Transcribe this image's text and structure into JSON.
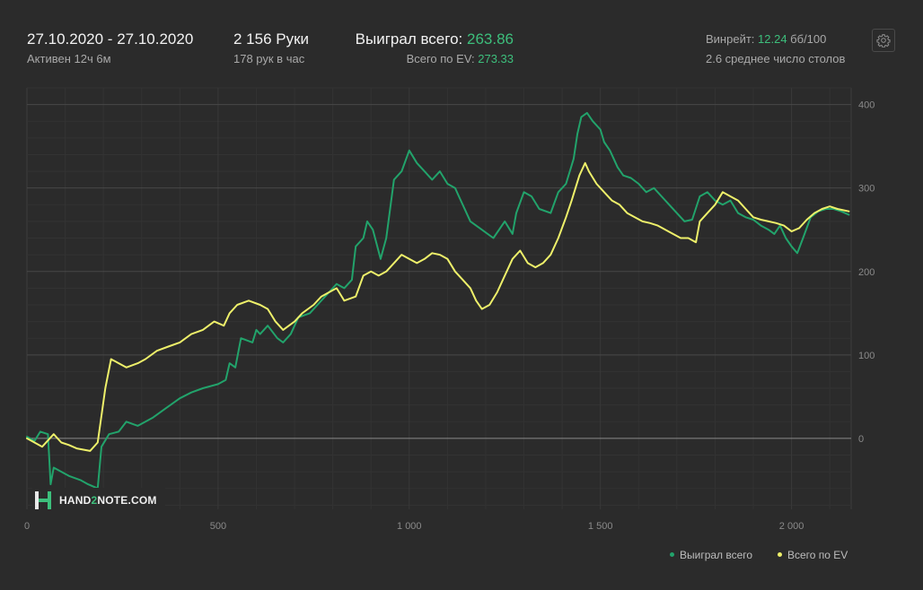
{
  "header": {
    "date_range": "27.10.2020 - 27.10.2020",
    "active": "Активен 12ч 6м",
    "hands": "2 156 Руки",
    "hands_per_hour": "178 рук в час",
    "won_label": "Выиграл всего: ",
    "won_value": "263.86",
    "ev_label": "Всего по EV: ",
    "ev_value": "273.33",
    "winrate_label": "Винрейт: ",
    "winrate_value": "12.24",
    "winrate_unit": " бб/100",
    "tables": "2.6 среднее число столов"
  },
  "logo": {
    "part1": "HAND",
    "part2": "2",
    "part3": "NOTE.COM"
  },
  "icons": {
    "settings": "gear-icon",
    "logo": "hand2note-logo-icon"
  },
  "colors": {
    "won": "#22a36b",
    "ev": "#eef06a",
    "accent": "#3dbf7c"
  },
  "chart_data": {
    "type": "line",
    "title": "",
    "xlabel": "",
    "ylabel": "",
    "xlim": [
      0,
      2156
    ],
    "ylim": [
      -85,
      420
    ],
    "x_ticks": [
      0,
      500,
      1000,
      1500,
      2000
    ],
    "x_tick_labels": [
      "0",
      "500",
      "1 000",
      "1 500",
      "2 000"
    ],
    "y_ticks": [
      0,
      100,
      200,
      300,
      400
    ],
    "y_tick_labels": [
      "0",
      "100",
      "200",
      "300",
      "400"
    ],
    "grid": true,
    "legend_position": "bottom-right",
    "series": [
      {
        "name": "Выиграл всего",
        "color": "#22a36b",
        "points": [
          [
            0,
            2
          ],
          [
            20,
            -3
          ],
          [
            35,
            8
          ],
          [
            55,
            5
          ],
          [
            62,
            -55
          ],
          [
            70,
            -35
          ],
          [
            90,
            -40
          ],
          [
            110,
            -45
          ],
          [
            140,
            -50
          ],
          [
            160,
            -55
          ],
          [
            185,
            -60
          ],
          [
            195,
            -10
          ],
          [
            215,
            5
          ],
          [
            240,
            8
          ],
          [
            260,
            20
          ],
          [
            290,
            15
          ],
          [
            330,
            25
          ],
          [
            360,
            35
          ],
          [
            400,
            48
          ],
          [
            430,
            55
          ],
          [
            460,
            60
          ],
          [
            500,
            65
          ],
          [
            520,
            70
          ],
          [
            530,
            90
          ],
          [
            545,
            85
          ],
          [
            560,
            120
          ],
          [
            590,
            115
          ],
          [
            600,
            130
          ],
          [
            610,
            125
          ],
          [
            630,
            135
          ],
          [
            655,
            120
          ],
          [
            670,
            115
          ],
          [
            690,
            125
          ],
          [
            710,
            145
          ],
          [
            740,
            150
          ],
          [
            760,
            160
          ],
          [
            790,
            175
          ],
          [
            810,
            185
          ],
          [
            830,
            180
          ],
          [
            850,
            190
          ],
          [
            860,
            230
          ],
          [
            880,
            240
          ],
          [
            890,
            260
          ],
          [
            905,
            250
          ],
          [
            925,
            215
          ],
          [
            940,
            240
          ],
          [
            960,
            310
          ],
          [
            980,
            320
          ],
          [
            1000,
            345
          ],
          [
            1020,
            330
          ],
          [
            1040,
            320
          ],
          [
            1060,
            310
          ],
          [
            1080,
            320
          ],
          [
            1100,
            305
          ],
          [
            1120,
            300
          ],
          [
            1130,
            290
          ],
          [
            1160,
            260
          ],
          [
            1190,
            250
          ],
          [
            1220,
            240
          ],
          [
            1250,
            260
          ],
          [
            1270,
            245
          ],
          [
            1280,
            270
          ],
          [
            1300,
            295
          ],
          [
            1320,
            290
          ],
          [
            1340,
            275
          ],
          [
            1370,
            270
          ],
          [
            1390,
            295
          ],
          [
            1410,
            305
          ],
          [
            1430,
            335
          ],
          [
            1440,
            365
          ],
          [
            1450,
            385
          ],
          [
            1465,
            390
          ],
          [
            1480,
            380
          ],
          [
            1500,
            370
          ],
          [
            1510,
            355
          ],
          [
            1525,
            345
          ],
          [
            1545,
            325
          ],
          [
            1560,
            315
          ],
          [
            1580,
            312
          ],
          [
            1600,
            305
          ],
          [
            1620,
            295
          ],
          [
            1640,
            300
          ],
          [
            1660,
            290
          ],
          [
            1680,
            280
          ],
          [
            1700,
            270
          ],
          [
            1720,
            260
          ],
          [
            1740,
            262
          ],
          [
            1760,
            290
          ],
          [
            1780,
            295
          ],
          [
            1800,
            285
          ],
          [
            1820,
            280
          ],
          [
            1840,
            285
          ],
          [
            1860,
            270
          ],
          [
            1880,
            265
          ],
          [
            1900,
            262
          ],
          [
            1920,
            255
          ],
          [
            1940,
            250
          ],
          [
            1955,
            245
          ],
          [
            1970,
            255
          ],
          [
            1985,
            240
          ],
          [
            2000,
            230
          ],
          [
            2015,
            222
          ],
          [
            2030,
            240
          ],
          [
            2050,
            265
          ],
          [
            2070,
            272
          ],
          [
            2090,
            275
          ],
          [
            2110,
            275
          ],
          [
            2130,
            272
          ],
          [
            2150,
            268
          ]
        ]
      },
      {
        "name": "Всего по EV",
        "color": "#eef06a",
        "points": [
          [
            0,
            0
          ],
          [
            40,
            -10
          ],
          [
            70,
            5
          ],
          [
            90,
            -5
          ],
          [
            110,
            -8
          ],
          [
            130,
            -12
          ],
          [
            165,
            -15
          ],
          [
            185,
            -5
          ],
          [
            205,
            60
          ],
          [
            220,
            95
          ],
          [
            240,
            90
          ],
          [
            260,
            85
          ],
          [
            290,
            90
          ],
          [
            310,
            95
          ],
          [
            340,
            105
          ],
          [
            370,
            110
          ],
          [
            400,
            115
          ],
          [
            430,
            125
          ],
          [
            460,
            130
          ],
          [
            490,
            140
          ],
          [
            515,
            135
          ],
          [
            530,
            150
          ],
          [
            550,
            160
          ],
          [
            580,
            165
          ],
          [
            610,
            160
          ],
          [
            630,
            155
          ],
          [
            650,
            140
          ],
          [
            670,
            130
          ],
          [
            700,
            140
          ],
          [
            720,
            150
          ],
          [
            750,
            160
          ],
          [
            770,
            170
          ],
          [
            790,
            175
          ],
          [
            810,
            180
          ],
          [
            830,
            165
          ],
          [
            860,
            170
          ],
          [
            880,
            195
          ],
          [
            900,
            200
          ],
          [
            920,
            195
          ],
          [
            940,
            200
          ],
          [
            960,
            210
          ],
          [
            980,
            220
          ],
          [
            1000,
            215
          ],
          [
            1020,
            210
          ],
          [
            1040,
            215
          ],
          [
            1060,
            222
          ],
          [
            1080,
            220
          ],
          [
            1100,
            215
          ],
          [
            1120,
            200
          ],
          [
            1140,
            190
          ],
          [
            1160,
            180
          ],
          [
            1175,
            165
          ],
          [
            1190,
            155
          ],
          [
            1210,
            160
          ],
          [
            1230,
            175
          ],
          [
            1250,
            195
          ],
          [
            1270,
            215
          ],
          [
            1290,
            225
          ],
          [
            1310,
            210
          ],
          [
            1330,
            205
          ],
          [
            1350,
            210
          ],
          [
            1370,
            220
          ],
          [
            1390,
            240
          ],
          [
            1410,
            265
          ],
          [
            1425,
            285
          ],
          [
            1445,
            315
          ],
          [
            1460,
            330
          ],
          [
            1470,
            320
          ],
          [
            1490,
            305
          ],
          [
            1510,
            295
          ],
          [
            1530,
            285
          ],
          [
            1550,
            280
          ],
          [
            1570,
            270
          ],
          [
            1590,
            265
          ],
          [
            1610,
            260
          ],
          [
            1630,
            258
          ],
          [
            1650,
            255
          ],
          [
            1670,
            250
          ],
          [
            1690,
            245
          ],
          [
            1710,
            240
          ],
          [
            1730,
            240
          ],
          [
            1750,
            235
          ],
          [
            1760,
            260
          ],
          [
            1780,
            270
          ],
          [
            1800,
            280
          ],
          [
            1820,
            295
          ],
          [
            1840,
            290
          ],
          [
            1860,
            285
          ],
          [
            1880,
            275
          ],
          [
            1900,
            265
          ],
          [
            1920,
            262
          ],
          [
            1940,
            260
          ],
          [
            1960,
            258
          ],
          [
            1980,
            255
          ],
          [
            2000,
            248
          ],
          [
            2020,
            252
          ],
          [
            2040,
            262
          ],
          [
            2060,
            270
          ],
          [
            2080,
            275
          ],
          [
            2100,
            278
          ],
          [
            2120,
            275
          ],
          [
            2150,
            272
          ]
        ]
      }
    ]
  }
}
